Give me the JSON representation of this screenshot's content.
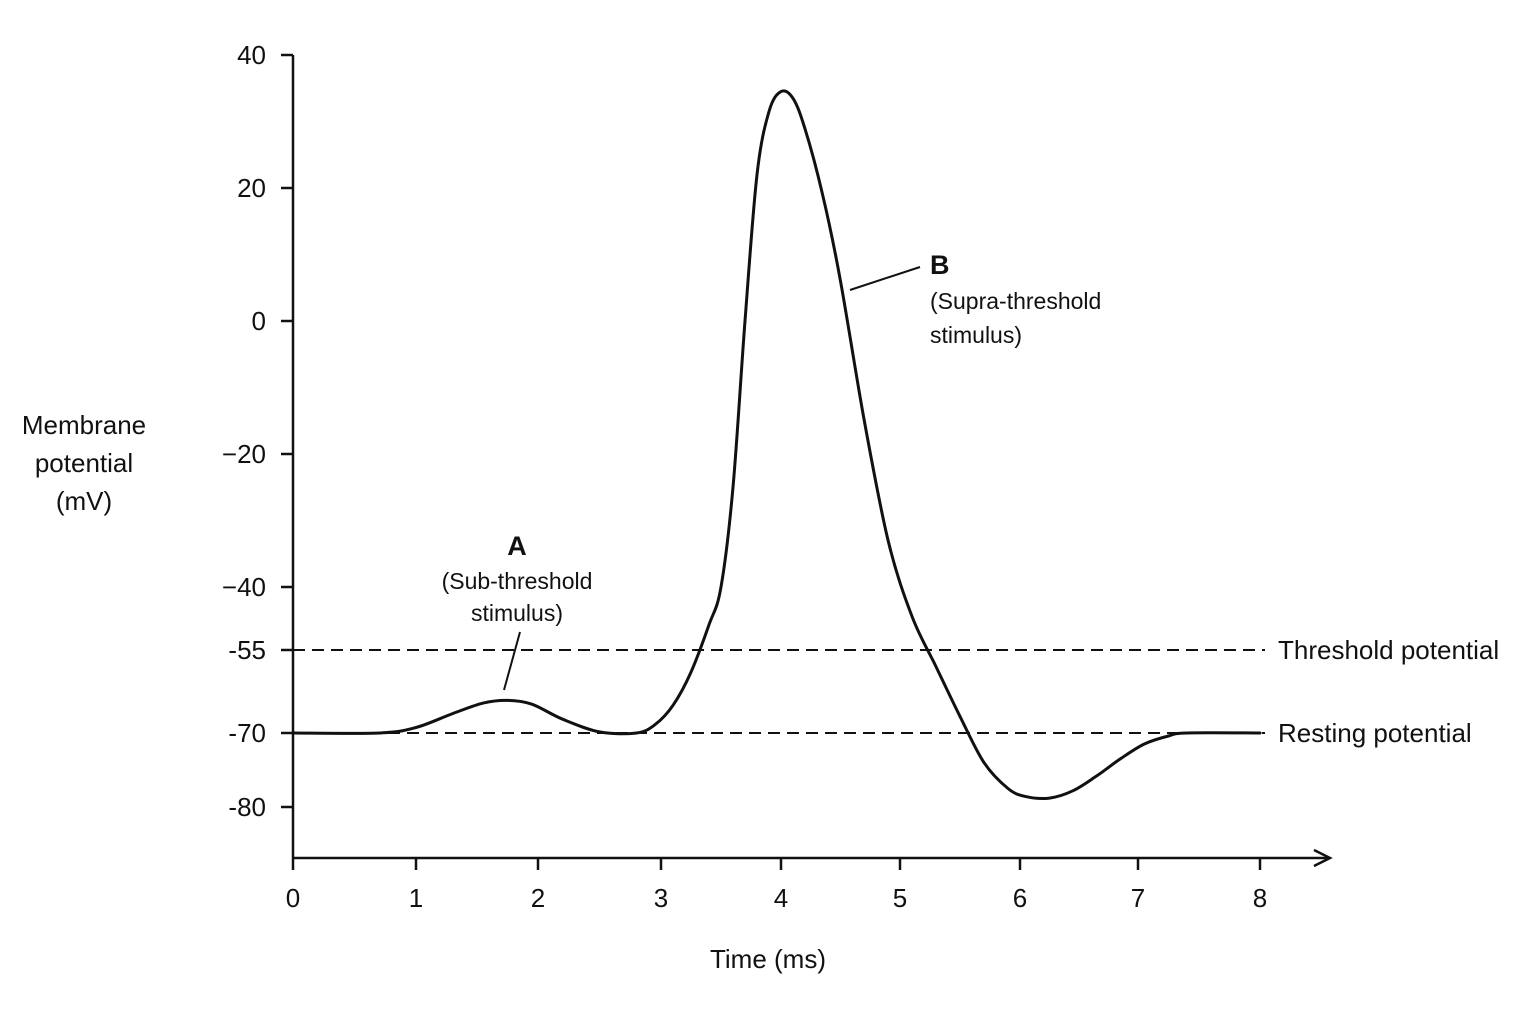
{
  "chart_data": {
    "type": "line",
    "title": "",
    "xlabel": "Time (ms)",
    "ylabel_lines": [
      "Membrane",
      "potential",
      "(mV)"
    ],
    "xlim": [
      0,
      8
    ],
    "ylim": [
      -88,
      40
    ],
    "x_ticks": [
      0,
      1,
      2,
      3,
      4,
      5,
      6,
      7,
      8
    ],
    "y_ticks": [
      40,
      20,
      0,
      -20,
      -40,
      -55,
      -70,
      -80
    ],
    "y_tick_labels": [
      "40",
      "20",
      "0",
      "−20",
      "−40",
      "-55",
      "-70",
      "-80"
    ],
    "grid": false,
    "axis_color": "#111111",
    "series": [
      {
        "x": [
          0,
          0.7,
          1.0,
          1.3,
          1.55,
          1.75,
          1.95,
          2.2,
          2.5,
          2.8,
          2.95,
          3.1,
          3.25,
          3.4,
          3.5,
          3.6,
          3.7,
          3.8,
          3.9,
          4.0,
          4.1,
          4.2,
          4.35,
          4.5,
          4.7,
          4.9,
          5.1,
          5.3,
          5.5,
          5.7,
          5.9,
          6.05,
          6.25,
          6.45,
          6.65,
          6.85,
          7.05,
          7.25,
          7.4,
          8.0
        ],
        "y": [
          -70,
          -70,
          -69,
          -66.5,
          -64.6,
          -64.1,
          -64.8,
          -67.5,
          -69.8,
          -70,
          -68.5,
          -65,
          -59,
          -49,
          -40,
          -25,
          0,
          22,
          31.5,
          34.5,
          33.5,
          29,
          19,
          6,
          -15,
          -33,
          -47,
          -58,
          -67,
          -74,
          -77.5,
          -78.6,
          -78.8,
          -77.8,
          -75.8,
          -73.5,
          -71.5,
          -70.4,
          -70,
          -70
        ]
      }
    ],
    "reference_lines": [
      {
        "label": "Threshold potential",
        "y": -55,
        "style": "dashed"
      },
      {
        "label": "Resting potential",
        "y": -70,
        "style": "dashed"
      }
    ],
    "annotations": [
      {
        "letter": "A",
        "lines": [
          "(Sub-threshold",
          "stimulus)"
        ],
        "x": 1.75,
        "y": -64.1
      },
      {
        "letter": "B",
        "lines": [
          "(Supra-threshold",
          "stimulus)"
        ],
        "x": 4.6,
        "y": 4.5
      }
    ]
  }
}
